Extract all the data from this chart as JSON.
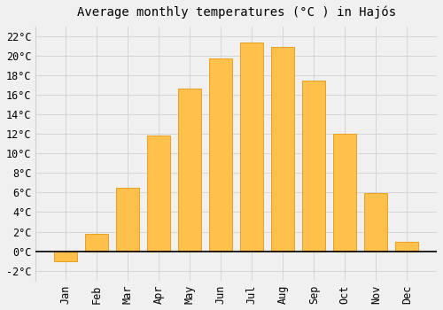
{
  "title": "Average monthly temperatures (°C ) in Hajós",
  "months": [
    "Jan",
    "Feb",
    "Mar",
    "Apr",
    "May",
    "Jun",
    "Jul",
    "Aug",
    "Sep",
    "Oct",
    "Nov",
    "Dec"
  ],
  "values": [
    -1.0,
    1.8,
    6.5,
    11.8,
    16.6,
    19.7,
    21.3,
    20.9,
    17.4,
    12.0,
    5.9,
    1.0
  ],
  "bar_color": "#FFC04C",
  "bar_edge_color": "#E8A020",
  "background_color": "#F0F0F0",
  "plot_bg_color": "#F0F0F0",
  "grid_color": "#d0d0d0",
  "ylim": [
    -3,
    23
  ],
  "yticks": [
    -2,
    0,
    2,
    4,
    6,
    8,
    10,
    12,
    14,
    16,
    18,
    20,
    22
  ],
  "title_fontsize": 10,
  "tick_fontsize": 8.5
}
